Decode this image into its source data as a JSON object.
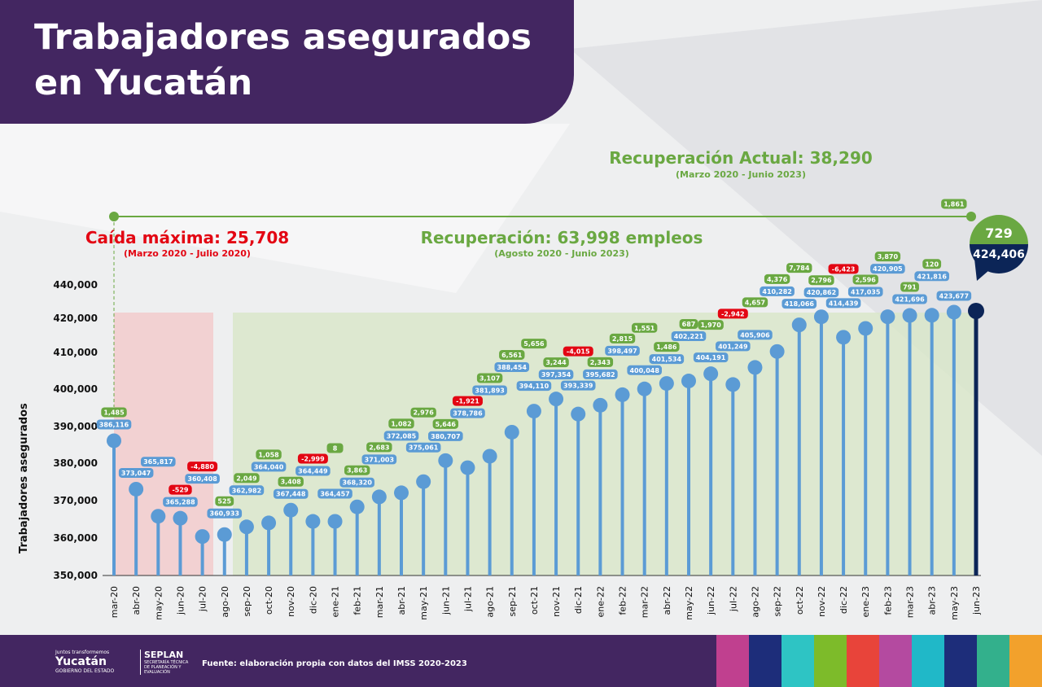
{
  "header": {
    "title": "Trabajadores asegurados en Yucatán"
  },
  "annotations": {
    "recovery_current": "Recuperación Actual: 38,290",
    "recovery_current_period": "(Marzo 2020 - Junio 2023)",
    "max_drop": "Caída máxima: 25,708",
    "max_drop_period": "(Marzo 2020 - Julio 2020)",
    "recovery": "Recuperación: 63,998 empleos",
    "recovery_period": "(Agosto 2020 - Junio 2023)"
  },
  "footer": {
    "source": "Fuente: elaboración propia con datos del IMSS 2020-2023",
    "logo_tagline": "Juntos transformemos",
    "logo_name": "Yucatán",
    "logo_sub": "GOBIERNO DEL ESTADO",
    "logo2_name": "SEPLAN",
    "logo2_sub": "SECRETARÍA TÉCNICA DE PLANEACIÓN Y EVALUACIÓN"
  },
  "colors": {
    "purple": "#432661",
    "stem": "#5b9bd5",
    "last": "#0c2557",
    "positive": "#6aa842",
    "negative": "#e30613",
    "drop_zone": "#f3c9cb",
    "recovery_zone": "#d8e6c8"
  },
  "chart_data": {
    "type": "lollipop",
    "ylabel": "Trabajadores asegurados",
    "yticks": [
      350000,
      360000,
      370000,
      380000,
      390000,
      400000,
      410000,
      420000,
      440000
    ],
    "ylim": [
      350000,
      440000
    ],
    "categories": [
      "mar-20",
      "abr-20",
      "may-20",
      "jun-20",
      "jul-20",
      "ago-20",
      "sep-20",
      "oct-20",
      "nov-20",
      "dic-20",
      "ene-21",
      "feb-21",
      "mar-21",
      "abr-21",
      "may-21",
      "jun-21",
      "jul-21",
      "ago-21",
      "sep-21",
      "oct-21",
      "nov-21",
      "dic-21",
      "ene-22",
      "feb-22",
      "mar-22",
      "abr-22",
      "may-22",
      "jun-22",
      "jul-22",
      "ago-22",
      "sep-22",
      "oct-22",
      "nov-22",
      "dic-22",
      "ene-23",
      "feb-23",
      "mar-23",
      "abr-23",
      "may-23",
      "jun-23"
    ],
    "values": [
      386116,
      373047,
      365817,
      365288,
      360408,
      360933,
      362982,
      364040,
      367448,
      364449,
      364457,
      368320,
      371003,
      372085,
      375061,
      380707,
      378786,
      381893,
      388454,
      394110,
      397354,
      393339,
      395682,
      398497,
      400048,
      401534,
      402221,
      404191,
      401249,
      405906,
      410282,
      418066,
      420862,
      414439,
      417035,
      420905,
      421696,
      421816,
      423677,
      424406
    ],
    "changes": [
      1485,
      null,
      null,
      -529,
      -4880,
      525,
      2049,
      1058,
      3408,
      -2999,
      8,
      3863,
      2683,
      1082,
      2976,
      5646,
      -1921,
      3107,
      6561,
      5656,
      3244,
      -4015,
      2343,
      2815,
      1551,
      1486,
      687,
      1970,
      -2942,
      4657,
      4376,
      7784,
      2796,
      -6423,
      2596,
      3870,
      791,
      120,
      1861,
      729
    ]
  }
}
